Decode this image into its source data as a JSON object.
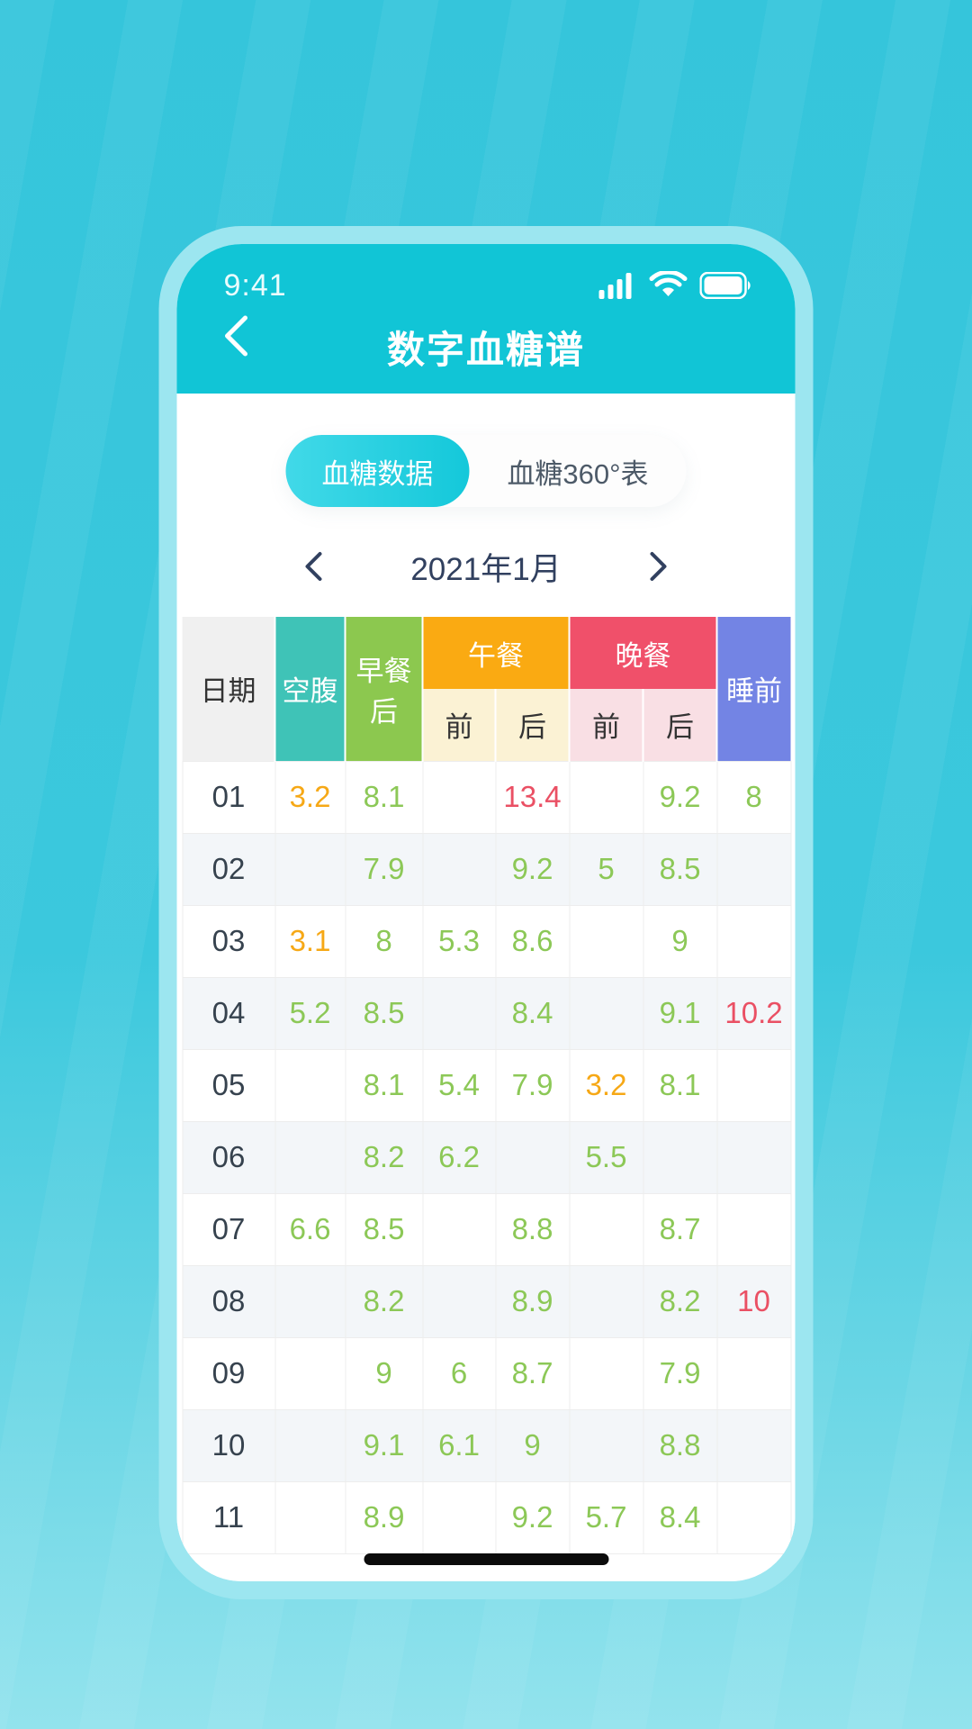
{
  "status_bar": {
    "time": "9:41"
  },
  "nav": {
    "title": "数字血糖谱"
  },
  "tabs": [
    {
      "label": "血糖数据",
      "active": true
    },
    {
      "label": "血糖360°表",
      "active": false
    }
  ],
  "month_nav": {
    "label": "2021年1月"
  },
  "table": {
    "header": {
      "date": "日期",
      "fasting": "空腹",
      "after_breakfast": "早餐后",
      "lunch": "午餐",
      "dinner": "晚餐",
      "before_sleep": "睡前",
      "before": "前",
      "after": "后"
    },
    "rows": [
      {
        "date": "01",
        "cells": [
          {
            "v": "3.2",
            "level": "low"
          },
          {
            "v": "8.1",
            "level": "normal"
          },
          {
            "v": ""
          },
          {
            "v": "13.4",
            "level": "high"
          },
          {
            "v": ""
          },
          {
            "v": "9.2",
            "level": "normal"
          },
          {
            "v": "8",
            "level": "normal"
          }
        ]
      },
      {
        "date": "02",
        "cells": [
          {
            "v": ""
          },
          {
            "v": "7.9",
            "level": "normal"
          },
          {
            "v": ""
          },
          {
            "v": "9.2",
            "level": "normal"
          },
          {
            "v": "5",
            "level": "normal"
          },
          {
            "v": "8.5",
            "level": "normal"
          },
          {
            "v": ""
          }
        ]
      },
      {
        "date": "03",
        "cells": [
          {
            "v": "3.1",
            "level": "low"
          },
          {
            "v": "8",
            "level": "normal"
          },
          {
            "v": "5.3",
            "level": "normal"
          },
          {
            "v": "8.6",
            "level": "normal"
          },
          {
            "v": ""
          },
          {
            "v": "9",
            "level": "normal"
          },
          {
            "v": ""
          }
        ]
      },
      {
        "date": "04",
        "cells": [
          {
            "v": "5.2",
            "level": "normal"
          },
          {
            "v": "8.5",
            "level": "normal"
          },
          {
            "v": ""
          },
          {
            "v": "8.4",
            "level": "normal"
          },
          {
            "v": ""
          },
          {
            "v": "9.1",
            "level": "normal"
          },
          {
            "v": "10.2",
            "level": "high"
          }
        ]
      },
      {
        "date": "05",
        "cells": [
          {
            "v": ""
          },
          {
            "v": "8.1",
            "level": "normal"
          },
          {
            "v": "5.4",
            "level": "normal"
          },
          {
            "v": "7.9",
            "level": "normal"
          },
          {
            "v": "3.2",
            "level": "low"
          },
          {
            "v": "8.1",
            "level": "normal"
          },
          {
            "v": ""
          }
        ]
      },
      {
        "date": "06",
        "cells": [
          {
            "v": ""
          },
          {
            "v": "8.2",
            "level": "normal"
          },
          {
            "v": "6.2",
            "level": "normal"
          },
          {
            "v": ""
          },
          {
            "v": "5.5",
            "level": "normal"
          },
          {
            "v": ""
          },
          {
            "v": ""
          }
        ]
      },
      {
        "date": "07",
        "cells": [
          {
            "v": "6.6",
            "level": "normal"
          },
          {
            "v": "8.5",
            "level": "normal"
          },
          {
            "v": ""
          },
          {
            "v": "8.8",
            "level": "normal"
          },
          {
            "v": ""
          },
          {
            "v": "8.7",
            "level": "normal"
          },
          {
            "v": ""
          }
        ]
      },
      {
        "date": "08",
        "cells": [
          {
            "v": ""
          },
          {
            "v": "8.2",
            "level": "normal"
          },
          {
            "v": ""
          },
          {
            "v": "8.9",
            "level": "normal"
          },
          {
            "v": ""
          },
          {
            "v": "8.2",
            "level": "normal"
          },
          {
            "v": "10",
            "level": "high"
          }
        ]
      },
      {
        "date": "09",
        "cells": [
          {
            "v": ""
          },
          {
            "v": "9",
            "level": "normal"
          },
          {
            "v": "6",
            "level": "normal"
          },
          {
            "v": "8.7",
            "level": "normal"
          },
          {
            "v": ""
          },
          {
            "v": "7.9",
            "level": "normal"
          },
          {
            "v": ""
          }
        ]
      },
      {
        "date": "10",
        "cells": [
          {
            "v": ""
          },
          {
            "v": "9.1",
            "level": "normal"
          },
          {
            "v": "6.1",
            "level": "normal"
          },
          {
            "v": "9",
            "level": "normal"
          },
          {
            "v": ""
          },
          {
            "v": "8.8",
            "level": "normal"
          },
          {
            "v": ""
          }
        ]
      },
      {
        "date": "11",
        "cells": [
          {
            "v": ""
          },
          {
            "v": "8.9",
            "level": "normal"
          },
          {
            "v": ""
          },
          {
            "v": "9.2",
            "level": "normal"
          },
          {
            "v": "5.7",
            "level": "normal"
          },
          {
            "v": "8.4",
            "level": "normal"
          },
          {
            "v": ""
          }
        ]
      }
    ]
  },
  "colors": {
    "accent_teal": "#11c5d6",
    "fasting_header": "#3fc3b7",
    "breakfast_header": "#8cc84f",
    "lunch_header": "#faaa12",
    "dinner_header": "#f0506a",
    "sleep_header": "#7384e4",
    "value_normal": "#8cc857",
    "value_low": "#f6a816",
    "value_high": "#ea5064"
  },
  "icons": {
    "signal": "signal-strength-icon",
    "wifi": "wifi-icon",
    "battery": "battery-icon",
    "back": "chevron-left-icon",
    "prev": "chevron-left-icon",
    "next": "chevron-right-icon"
  }
}
